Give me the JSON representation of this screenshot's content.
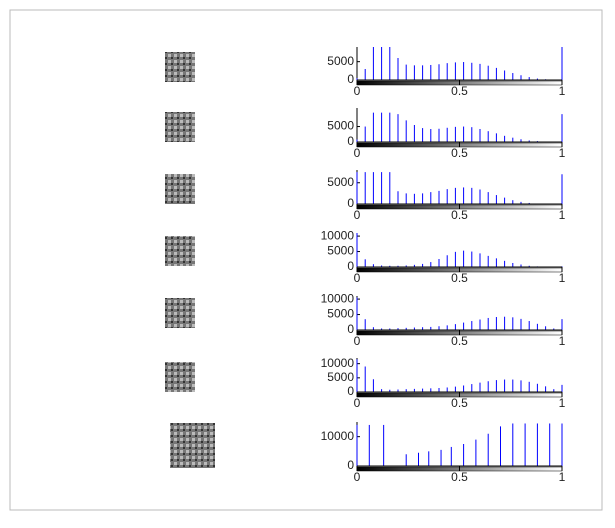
{
  "chart_data": [
    {
      "type": "stem",
      "color": "#0000ff",
      "xlim": [
        0,
        1
      ],
      "xticks": [
        0,
        0.5,
        1
      ],
      "ylim": [
        0,
        9000
      ],
      "yticks": [
        0,
        5000
      ],
      "x": [
        0,
        0.04,
        0.08,
        0.12,
        0.16,
        0.2,
        0.24,
        0.28,
        0.32,
        0.36,
        0.4,
        0.44,
        0.48,
        0.52,
        0.56,
        0.6,
        0.64,
        0.68,
        0.72,
        0.76,
        0.8,
        0.84,
        0.88,
        0.92,
        0.96,
        1
      ],
      "values": [
        500,
        3000,
        9000,
        9000,
        9000,
        6000,
        4200,
        4000,
        4000,
        4100,
        4300,
        4600,
        4800,
        4900,
        4700,
        4400,
        3900,
        3300,
        2600,
        1900,
        1300,
        800,
        400,
        200,
        100,
        9000
      ]
    },
    {
      "type": "stem",
      "color": "#0000ff",
      "xlim": [
        0,
        1
      ],
      "xticks": [
        0,
        0.5,
        1
      ],
      "ylim": [
        0,
        11000
      ],
      "yticks": [
        0,
        5000
      ],
      "x": [
        0,
        0.04,
        0.08,
        0.12,
        0.16,
        0.2,
        0.24,
        0.28,
        0.32,
        0.36,
        0.4,
        0.44,
        0.48,
        0.52,
        0.56,
        0.6,
        0.64,
        0.68,
        0.72,
        0.76,
        0.8,
        0.84,
        0.88,
        0.92,
        0.96,
        1
      ],
      "values": [
        800,
        5000,
        9500,
        9500,
        9500,
        9000,
        7000,
        5500,
        4500,
        4200,
        4300,
        4600,
        4900,
        5000,
        4800,
        4200,
        3500,
        2800,
        2000,
        1400,
        900,
        500,
        300,
        150,
        80,
        9000
      ]
    },
    {
      "type": "stem",
      "color": "#0000ff",
      "xlim": [
        0,
        1
      ],
      "xticks": [
        0,
        0.5,
        1
      ],
      "ylim": [
        0,
        8000
      ],
      "yticks": [
        0,
        5000
      ],
      "x": [
        0,
        0.04,
        0.08,
        0.12,
        0.16,
        0.2,
        0.24,
        0.28,
        0.32,
        0.36,
        0.4,
        0.44,
        0.48,
        0.52,
        0.56,
        0.6,
        0.64,
        0.68,
        0.72,
        0.76,
        0.8,
        0.84,
        0.88,
        0.92,
        0.96,
        1
      ],
      "values": [
        7500,
        7500,
        7500,
        7500,
        7500,
        3000,
        2500,
        2400,
        2500,
        2800,
        3100,
        3500,
        3800,
        3900,
        3800,
        3400,
        2800,
        2100,
        1500,
        900,
        500,
        250,
        120,
        60,
        30,
        7000
      ]
    },
    {
      "type": "stem",
      "color": "#0000ff",
      "xlim": [
        0,
        1
      ],
      "xticks": [
        0,
        0.5,
        1
      ],
      "ylim": [
        0,
        11000
      ],
      "yticks": [
        0,
        5000,
        10000
      ],
      "x": [
        0,
        0.04,
        0.08,
        0.12,
        0.16,
        0.2,
        0.24,
        0.28,
        0.32,
        0.36,
        0.4,
        0.44,
        0.48,
        0.52,
        0.56,
        0.6,
        0.64,
        0.68,
        0.72,
        0.76,
        0.8,
        0.84,
        0.88,
        0.92,
        0.96,
        1
      ],
      "values": [
        11000,
        2500,
        900,
        500,
        400,
        400,
        500,
        700,
        1000,
        1600,
        2600,
        3800,
        4900,
        5300,
        5000,
        4400,
        3600,
        2800,
        2000,
        1300,
        800,
        400,
        200,
        100,
        50,
        200
      ]
    },
    {
      "type": "stem",
      "color": "#0000ff",
      "xlim": [
        0,
        1
      ],
      "xticks": [
        0,
        0.5,
        1
      ],
      "ylim": [
        0,
        11000
      ],
      "yticks": [
        0,
        5000,
        10000
      ],
      "x": [
        0,
        0.04,
        0.08,
        0.12,
        0.16,
        0.2,
        0.24,
        0.28,
        0.32,
        0.36,
        0.4,
        0.44,
        0.48,
        0.52,
        0.56,
        0.6,
        0.64,
        0.68,
        0.72,
        0.76,
        0.8,
        0.84,
        0.88,
        0.92,
        0.96,
        1
      ],
      "values": [
        10500,
        3500,
        900,
        500,
        500,
        600,
        700,
        800,
        900,
        1000,
        1200,
        1500,
        1900,
        2400,
        2900,
        3400,
        3900,
        4200,
        4300,
        4100,
        3600,
        2900,
        2000,
        1200,
        500,
        3500
      ]
    },
    {
      "type": "stem",
      "color": "#0000ff",
      "xlim": [
        0,
        1
      ],
      "xticks": [
        0,
        0.5,
        1
      ],
      "ylim": [
        0,
        12000
      ],
      "yticks": [
        0,
        5000,
        10000
      ],
      "x": [
        0,
        0.04,
        0.08,
        0.12,
        0.16,
        0.2,
        0.24,
        0.28,
        0.32,
        0.36,
        0.4,
        0.44,
        0.48,
        0.52,
        0.56,
        0.6,
        0.64,
        0.68,
        0.72,
        0.76,
        0.8,
        0.84,
        0.88,
        0.92,
        0.96,
        1
      ],
      "values": [
        11500,
        9000,
        4500,
        1000,
        800,
        900,
        1000,
        1100,
        1200,
        1300,
        1400,
        1600,
        1900,
        2300,
        2800,
        3300,
        3800,
        4200,
        4400,
        4400,
        4100,
        3600,
        2900,
        2000,
        1000,
        2500
      ]
    },
    {
      "type": "stem",
      "color": "#0000ff",
      "xlim": [
        0,
        1
      ],
      "xticks": [
        0,
        0.5,
        1
      ],
      "ylim": [
        0,
        15000
      ],
      "yticks": [
        0,
        10000
      ],
      "x": [
        0,
        0.06,
        0.13,
        0.24,
        0.3,
        0.35,
        0.41,
        0.46,
        0.52,
        0.58,
        0.64,
        0.7,
        0.76,
        0.82,
        0.88,
        0.94,
        1
      ],
      "values": [
        14000,
        14000,
        14000,
        4000,
        4500,
        5000,
        5500,
        6500,
        7500,
        9000,
        11000,
        13500,
        14500,
        14500,
        14500,
        14500,
        14500
      ]
    }
  ]
}
